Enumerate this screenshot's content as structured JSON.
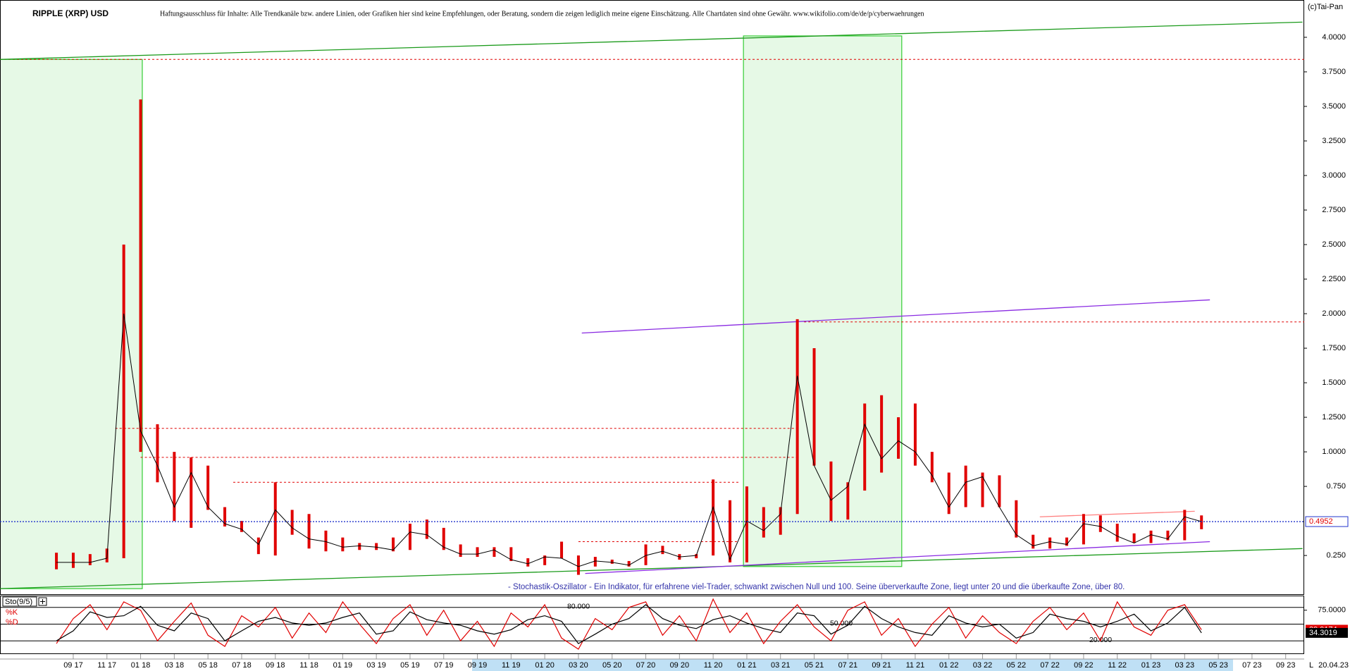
{
  "chart_data": [
    {
      "type": "ohlc",
      "title": "RIPPLE (XRP) USD",
      "disclaimer": "Haftungsausschluss für Inhalte: Alle Trendkanäle bzw. andere Linien, oder Grafiken hier sind keine Empfehlungen, oder Beratung, sondern die zeigen lediglich meine eigene Einschätzung. Alle Chartdaten sind ohne Gewähr.  www.wikifolio.com/de/de/p/cyberwaehrungen",
      "source": "(c)Tai-Pan",
      "note": "- Stochastik-Oszillator - Ein Indikator, für erfahrene viel-Trader, schwankt zwischen Null und 100. Seine überverkaufte Zone, liegt unter 20 und die überkaufte Zone, über 80.",
      "color": "#e00000",
      "close_color": "#000000",
      "close": [
        0.2,
        0.2,
        0.2,
        0.23,
        2.0,
        1.15,
        0.9,
        0.6,
        0.85,
        0.6,
        0.48,
        0.44,
        0.33,
        0.58,
        0.45,
        0.37,
        0.35,
        0.31,
        0.32,
        0.31,
        0.29,
        0.42,
        0.4,
        0.31,
        0.26,
        0.26,
        0.29,
        0.22,
        0.19,
        0.24,
        0.23,
        0.17,
        0.21,
        0.2,
        0.18,
        0.25,
        0.28,
        0.24,
        0.25,
        0.6,
        0.22,
        0.5,
        0.43,
        0.55,
        1.55,
        0.9,
        0.65,
        0.75,
        1.2,
        0.95,
        1.08,
        1.0,
        0.83,
        0.6,
        0.78,
        0.82,
        0.6,
        0.4,
        0.32,
        0.35,
        0.33,
        0.48,
        0.46,
        0.39,
        0.34,
        0.4,
        0.37,
        0.53,
        0.4952,
        null,
        null,
        null,
        null,
        null
      ],
      "high": [
        0.27,
        0.27,
        0.26,
        0.3,
        2.5,
        3.55,
        1.2,
        1.0,
        0.96,
        0.9,
        0.6,
        0.5,
        0.38,
        0.78,
        0.58,
        0.55,
        0.43,
        0.38,
        0.34,
        0.34,
        0.38,
        0.48,
        0.51,
        0.45,
        0.33,
        0.31,
        0.31,
        0.31,
        0.23,
        0.25,
        0.35,
        0.25,
        0.24,
        0.22,
        0.21,
        0.33,
        0.32,
        0.26,
        0.26,
        0.8,
        0.65,
        0.75,
        0.6,
        0.6,
        1.96,
        1.75,
        0.93,
        0.78,
        1.35,
        1.41,
        1.25,
        1.35,
        1.0,
        0.85,
        0.9,
        0.85,
        0.83,
        0.65,
        0.4,
        0.38,
        0.38,
        0.55,
        0.54,
        0.48,
        0.41,
        0.43,
        0.43,
        0.58,
        0.54,
        null,
        null,
        null,
        null,
        null
      ],
      "low": [
        0.15,
        0.16,
        0.18,
        0.2,
        0.23,
        1.0,
        0.78,
        0.5,
        0.45,
        0.58,
        0.46,
        0.42,
        0.26,
        0.25,
        0.4,
        0.3,
        0.28,
        0.28,
        0.29,
        0.29,
        0.28,
        0.29,
        0.37,
        0.29,
        0.24,
        0.24,
        0.24,
        0.21,
        0.17,
        0.18,
        0.23,
        0.11,
        0.17,
        0.19,
        0.17,
        0.18,
        0.26,
        0.22,
        0.23,
        0.25,
        0.2,
        0.2,
        0.38,
        0.4,
        0.55,
        0.9,
        0.5,
        0.51,
        0.72,
        0.85,
        0.95,
        0.9,
        0.78,
        0.55,
        0.6,
        0.6,
        0.6,
        0.38,
        0.3,
        0.3,
        0.32,
        0.33,
        0.42,
        0.35,
        0.34,
        0.34,
        0.36,
        0.36,
        0.44,
        null,
        null,
        null,
        null,
        null
      ],
      "xlim": [
        -3.35,
        74.1
      ],
      "ylim": [
        -0.03,
        4.27
      ],
      "yticks": [
        {
          "value": 0.25,
          "label": "0.250"
        },
        {
          "value": 0.75,
          "label": "0.750"
        },
        {
          "value": 1.0,
          "label": "1.0000"
        },
        {
          "value": 1.25,
          "label": "1.2500"
        },
        {
          "value": 1.5,
          "label": "1.5000"
        },
        {
          "value": 1.75,
          "label": "1.7500"
        },
        {
          "value": 2.0,
          "label": "2.0000"
        },
        {
          "value": 2.25,
          "label": "2.2500"
        },
        {
          "value": 2.5,
          "label": "2.5000"
        },
        {
          "value": 2.75,
          "label": "2.7500"
        },
        {
          "value": 3.0,
          "label": "3.0000"
        },
        {
          "value": 3.25,
          "label": "3.2500"
        },
        {
          "value": 3.5,
          "label": "3.5000"
        },
        {
          "value": 3.75,
          "label": "3.7500"
        },
        {
          "value": 4.0,
          "label": "4.0000"
        }
      ],
      "last_value_color": "#2233cc",
      "shaded_ranges": [
        {
          "x": [
            -3.35,
            5.1
          ],
          "y": [
            0.01,
            3.84
          ],
          "color": "#33cc33"
        },
        {
          "x": [
            40.8,
            50.2
          ],
          "y": [
            0.17,
            4.01
          ],
          "color": "#33cc33"
        }
      ],
      "trendlines": [
        {
          "color": "#1a9a1a",
          "points": [
            [
              -3.35,
              3.84
            ],
            [
              74,
              4.11
            ]
          ]
        },
        {
          "color": "#1a9a1a",
          "points": [
            [
              -3.35,
              0.01
            ],
            [
              74,
              0.3
            ]
          ]
        },
        {
          "color": "#8a2be2",
          "points": [
            [
              31.2,
              1.86
            ],
            [
              68.5,
              2.1
            ]
          ]
        },
        {
          "color": "#8a2be2",
          "points": [
            [
              31.4,
              0.12
            ],
            [
              68.5,
              0.35
            ]
          ]
        },
        {
          "color": "#ff8080",
          "points": [
            [
              58.4,
              0.53
            ],
            [
              67.6,
              0.57
            ]
          ]
        }
      ],
      "hlines": [
        {
          "value": 3.84,
          "x": [
            -3.35,
            74.1
          ],
          "color": "#e00000"
        },
        {
          "value": 1.94,
          "x": [
            44.4,
            74.1
          ],
          "color": "#e00000"
        },
        {
          "value": 1.17,
          "x": [
            3.5,
            44
          ],
          "color": "#e00000"
        },
        {
          "value": 0.96,
          "x": [
            5.0,
            44
          ],
          "color": "#e00000"
        },
        {
          "value": 0.78,
          "x": [
            10.5,
            40.5
          ],
          "color": "#e00000"
        },
        {
          "value": 0.35,
          "x": [
            31,
            40.5
          ],
          "color": "#e00000"
        }
      ]
    },
    {
      "type": "line",
      "title": "Sto(9/5)",
      "categories": [
        null,
        "09 17",
        null,
        "11 17",
        null,
        "01 18",
        null,
        "03 18",
        null,
        "05 18",
        null,
        "07 18",
        null,
        "09 18",
        null,
        "11 18",
        null,
        "01 19",
        null,
        "03 19",
        null,
        "05 19",
        null,
        "07 19",
        null,
        "09 19",
        null,
        "11 19",
        null,
        "01 20",
        null,
        "03 20",
        null,
        "05 20",
        null,
        "07 20",
        null,
        "09 20",
        null,
        "11 20",
        null,
        "01 21",
        null,
        "03 21",
        null,
        "05 21",
        null,
        "07 21",
        null,
        "09 21",
        null,
        "11 21",
        null,
        "01 22",
        null,
        "03 22",
        null,
        "05 22",
        null,
        "07 22",
        null,
        "09 22",
        null,
        "11 22",
        null,
        "01 23",
        null,
        "03 23",
        null,
        "05 23",
        null,
        "07 23",
        null,
        "09 23"
      ],
      "date_label": "20.04.23",
      "axis_flag": "L",
      "series": [
        {
          "name": "%K",
          "color": "#e00000",
          "values": [
            15,
            60,
            85,
            40,
            90,
            75,
            20,
            55,
            88,
            30,
            10,
            65,
            45,
            80,
            25,
            70,
            35,
            90,
            50,
            15,
            60,
            85,
            30,
            75,
            20,
            55,
            10,
            70,
            45,
            85,
            25,
            5,
            60,
            40,
            80,
            90,
            30,
            65,
            20,
            95,
            35,
            70,
            15,
            55,
            85,
            45,
            20,
            75,
            90,
            30,
            60,
            10,
            50,
            80,
            25,
            65,
            35,
            15,
            55,
            80,
            40,
            70,
            20,
            90,
            45,
            30,
            75,
            85,
            39.9174,
            null,
            null,
            null,
            null,
            null
          ]
        },
        {
          "name": "%D",
          "color": "#000000",
          "values": [
            20,
            38,
            72,
            62,
            65,
            82,
            48,
            38,
            70,
            60,
            20,
            38,
            55,
            62,
            52,
            48,
            52,
            62,
            70,
            32,
            38,
            72,
            58,
            52,
            48,
            38,
            32,
            40,
            58,
            65,
            55,
            15,
            32,
            50,
            60,
            85,
            60,
            48,
            42,
            58,
            65,
            52,
            42,
            35,
            70,
            65,
            32,
            48,
            82,
            60,
            45,
            35,
            30,
            65,
            52,
            45,
            50,
            25,
            35,
            68,
            60,
            55,
            45,
            55,
            68,
            38,
            52,
            80,
            34.3019,
            null,
            null,
            null,
            null,
            null
          ]
        }
      ],
      "ylim": [
        0,
        100
      ],
      "yticks": [
        {
          "value": 75,
          "label": "75.0000"
        }
      ],
      "levels": [
        {
          "value": 80,
          "label": "80.000"
        },
        {
          "value": 50,
          "label": "50.000"
        },
        {
          "value": 20,
          "label": "20.000"
        }
      ]
    }
  ]
}
